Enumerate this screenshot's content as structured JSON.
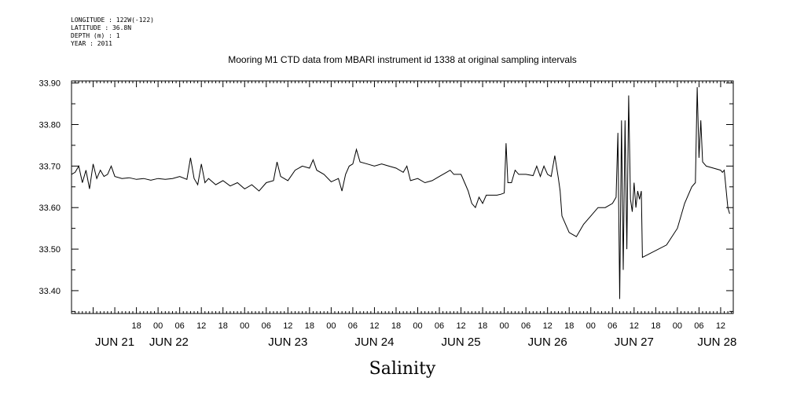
{
  "header": {
    "longitude": "LONGITUDE : 122W(-122)",
    "latitude": "LATITUDE : 36.8N",
    "depth": "DEPTH (m) : 1",
    "year": "YEAR : 2011"
  },
  "chart_data": {
    "type": "line",
    "title": "Mooring M1 CTD data from MBARI instrument id 1338 at original sampling intervals",
    "xlabel": "Salinity",
    "ylabel": "",
    "xlim": [
      0,
      183.5
    ],
    "ylim": [
      33.345,
      33.905
    ],
    "x_units": "hours since JUN 21 00:00",
    "grid": false,
    "yticks": [
      33.4,
      33.5,
      33.6,
      33.7,
      33.8,
      33.9
    ],
    "ytick_labels": [
      "33.40",
      "33.50",
      "33.60",
      "33.70",
      "33.80",
      "33.90"
    ],
    "xticks": [
      18,
      24,
      30,
      36,
      42,
      48,
      54,
      60,
      66,
      72,
      78,
      84,
      90,
      96,
      102,
      108,
      114,
      120,
      126,
      132,
      138,
      144,
      150,
      156,
      162,
      168,
      174,
      180
    ],
    "xtick_labels": [
      "18",
      "00",
      "06",
      "12",
      "18",
      "00",
      "06",
      "12",
      "18",
      "00",
      "06",
      "12",
      "18",
      "00",
      "06",
      "12",
      "18",
      "00",
      "06",
      "12",
      "18",
      "00",
      "06",
      "12",
      "18",
      "00",
      "06",
      "12"
    ],
    "day_labels": [
      {
        "x": 12,
        "label": "JUN 21"
      },
      {
        "x": 27,
        "label": "JUN 22"
      },
      {
        "x": 60,
        "label": "JUN 23"
      },
      {
        "x": 84,
        "label": "JUN 24"
      },
      {
        "x": 108,
        "label": "JUN 25"
      },
      {
        "x": 132,
        "label": "JUN 26"
      },
      {
        "x": 156,
        "label": "JUN 27"
      },
      {
        "x": 179,
        "label": "JUN 28"
      }
    ],
    "series": [
      {
        "values": [
          [
            0,
            33.68
          ],
          [
            1,
            33.685
          ],
          [
            2,
            33.7
          ],
          [
            3,
            33.66
          ],
          [
            4,
            33.69
          ],
          [
            5,
            33.645
          ],
          [
            6,
            33.705
          ],
          [
            7,
            33.67
          ],
          [
            8,
            33.69
          ],
          [
            9,
            33.675
          ],
          [
            10,
            33.68
          ],
          [
            11,
            33.7
          ],
          [
            12,
            33.675
          ],
          [
            14,
            33.67
          ],
          [
            16,
            33.672
          ],
          [
            18,
            33.668
          ],
          [
            20,
            33.67
          ],
          [
            22,
            33.666
          ],
          [
            24,
            33.67
          ],
          [
            26,
            33.668
          ],
          [
            28,
            33.67
          ],
          [
            30,
            33.675
          ],
          [
            32,
            33.668
          ],
          [
            33,
            33.72
          ],
          [
            34,
            33.67
          ],
          [
            35,
            33.655
          ],
          [
            36,
            33.705
          ],
          [
            37,
            33.66
          ],
          [
            38,
            33.67
          ],
          [
            40,
            33.655
          ],
          [
            42,
            33.665
          ],
          [
            44,
            33.652
          ],
          [
            46,
            33.66
          ],
          [
            48,
            33.645
          ],
          [
            50,
            33.655
          ],
          [
            52,
            33.64
          ],
          [
            54,
            33.66
          ],
          [
            56,
            33.665
          ],
          [
            57,
            33.71
          ],
          [
            58,
            33.675
          ],
          [
            60,
            33.665
          ],
          [
            62,
            33.69
          ],
          [
            64,
            33.7
          ],
          [
            66,
            33.695
          ],
          [
            67,
            33.715
          ],
          [
            68,
            33.69
          ],
          [
            70,
            33.68
          ],
          [
            72,
            33.662
          ],
          [
            74,
            33.67
          ],
          [
            75,
            33.64
          ],
          [
            76,
            33.68
          ],
          [
            77,
            33.7
          ],
          [
            78,
            33.705
          ],
          [
            79,
            33.74
          ],
          [
            80,
            33.71
          ],
          [
            82,
            33.705
          ],
          [
            84,
            33.7
          ],
          [
            86,
            33.705
          ],
          [
            88,
            33.7
          ],
          [
            90,
            33.695
          ],
          [
            92,
            33.685
          ],
          [
            93,
            33.7
          ],
          [
            94,
            33.665
          ],
          [
            96,
            33.67
          ],
          [
            98,
            33.66
          ],
          [
            100,
            33.665
          ],
          [
            102,
            33.675
          ],
          [
            104,
            33.685
          ],
          [
            105,
            33.69
          ],
          [
            106,
            33.68
          ],
          [
            108,
            33.68
          ],
          [
            109,
            33.66
          ],
          [
            110,
            33.64
          ],
          [
            111,
            33.61
          ],
          [
            112,
            33.6
          ],
          [
            113,
            33.625
          ],
          [
            114,
            33.61
          ],
          [
            115,
            33.63
          ],
          [
            116,
            33.63
          ],
          [
            118,
            33.63
          ],
          [
            119,
            33.632
          ],
          [
            120,
            33.635
          ],
          [
            120.5,
            33.755
          ],
          [
            121,
            33.66
          ],
          [
            122,
            33.66
          ],
          [
            123,
            33.69
          ],
          [
            124,
            33.68
          ],
          [
            126,
            33.68
          ],
          [
            128,
            33.677
          ],
          [
            129,
            33.7
          ],
          [
            130,
            33.675
          ],
          [
            131,
            33.7
          ],
          [
            132,
            33.68
          ],
          [
            133,
            33.675
          ],
          [
            134,
            33.725
          ],
          [
            135,
            33.67
          ],
          [
            135.5,
            33.64
          ],
          [
            136,
            33.58
          ],
          [
            137,
            33.56
          ],
          [
            138,
            33.54
          ],
          [
            139,
            33.535
          ],
          [
            140,
            33.53
          ],
          [
            141,
            33.545
          ],
          [
            142,
            33.56
          ],
          [
            144,
            33.58
          ],
          [
            146,
            33.6
          ],
          [
            148,
            33.6
          ],
          [
            150,
            33.61
          ],
          [
            151,
            33.625
          ],
          [
            151.5,
            33.78
          ],
          [
            152,
            33.38
          ],
          [
            152.5,
            33.81
          ],
          [
            153,
            33.45
          ],
          [
            153.5,
            33.81
          ],
          [
            154,
            33.5
          ],
          [
            154.5,
            33.87
          ],
          [
            155,
            33.62
          ],
          [
            155.5,
            33.59
          ],
          [
            156,
            33.66
          ],
          [
            156.5,
            33.6
          ],
          [
            157,
            33.64
          ],
          [
            157.5,
            33.62
          ],
          [
            158,
            33.64
          ],
          [
            158.3,
            33.48
          ],
          [
            165,
            33.51
          ],
          [
            168,
            33.55
          ],
          [
            170,
            33.61
          ],
          [
            172,
            33.65
          ],
          [
            173,
            33.66
          ],
          [
            173.5,
            33.89
          ],
          [
            174,
            33.72
          ],
          [
            174.5,
            33.81
          ],
          [
            175,
            33.71
          ],
          [
            176,
            33.7
          ],
          [
            178,
            33.695
          ],
          [
            180,
            33.69
          ],
          [
            180.5,
            33.685
          ],
          [
            181,
            33.69
          ],
          [
            182,
            33.6
          ],
          [
            182.5,
            33.585
          ]
        ]
      }
    ]
  }
}
